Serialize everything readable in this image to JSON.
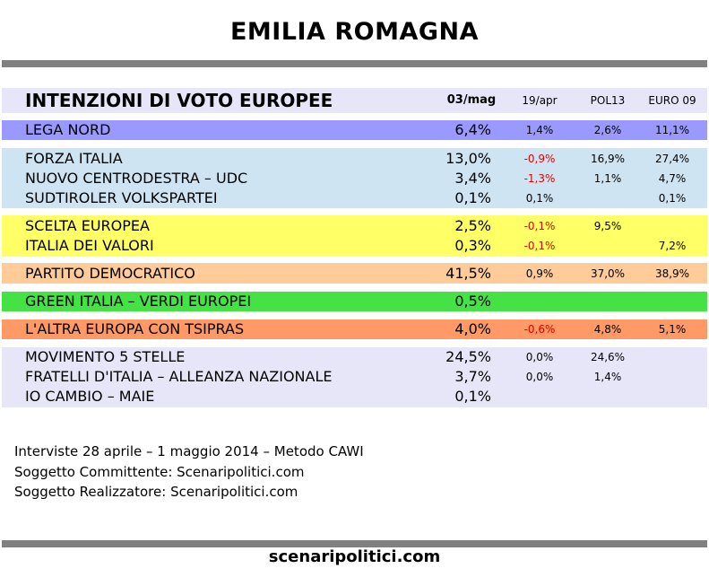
{
  "title": "EMILIA ROMAGNA",
  "header": {
    "label": "INTENZIONI DI VOTO EUROPEE",
    "col1": "03/mag",
    "col2": "19/apr",
    "col3": "POL13",
    "col4": "EURO 09"
  },
  "rows": [
    {
      "name": "LEGA NORD",
      "v": "6,4%",
      "d": "1,4%",
      "p": "2,6%",
      "e": "11,1%"
    },
    {
      "name": "FORZA ITALIA",
      "v": "13,0%",
      "d": "-0,9%",
      "p": "16,9%",
      "e": "27,4%"
    },
    {
      "name": "NUOVO CENTRODESTRA – UDC",
      "v": "3,4%",
      "d": "-1,3%",
      "p": "1,1%",
      "e": "4,7%"
    },
    {
      "name": "SUDTIROLER VOLKSPARTEI",
      "v": "0,1%",
      "d": "0,1%",
      "p": "",
      "e": "0,1%"
    },
    {
      "name": "SCELTA EUROPEA",
      "v": "2,5%",
      "d": "-0,1%",
      "p": "9,5%",
      "e": ""
    },
    {
      "name": "ITALIA DEI VALORI",
      "v": "0,3%",
      "d": "-0,1%",
      "p": "",
      "e": "7,2%"
    },
    {
      "name": "PARTITO DEMOCRATICO",
      "v": "41,5%",
      "d": "0,9%",
      "p": "37,0%",
      "e": "38,9%"
    },
    {
      "name": "GREEN ITALIA – VERDI EUROPEI",
      "v": "0,5%",
      "d": "",
      "p": "",
      "e": ""
    },
    {
      "name": "L'ALTRA EUROPA CON TSIPRAS",
      "v": "4,0%",
      "d": "-0,6%",
      "p": "4,8%",
      "e": "5,1%"
    },
    {
      "name": "MOVIMENTO 5 STELLE",
      "v": "24,5%",
      "d": "0,0%",
      "p": "24,6%",
      "e": ""
    },
    {
      "name": "FRATELLI D'ITALIA – ALLEANZA NAZIONALE",
      "v": "3,7%",
      "d": "0,0%",
      "p": "1,4%",
      "e": ""
    },
    {
      "name": "IO CAMBIO – MAIE",
      "v": "0,1%",
      "d": "",
      "p": "",
      "e": ""
    }
  ],
  "footer": {
    "line1": "Interviste 28 aprile – 1 maggio 2014 – Metodo CAWI",
    "line2": "Soggetto Committente: Scenaripolitici.com",
    "line3": "Soggetto Realizzatore: Scenaripolitici.com"
  },
  "site": "scenaripolitici.com",
  "colors": {
    "header": "#e6e6f8",
    "lega": "#9999ff",
    "centrodestra": "#cfe4f2",
    "centro": "#ffff66",
    "pd": "#ffcc99",
    "green": "#44e244",
    "tsipras": "#ff9966",
    "others": "#e6e6f8",
    "negative": "#e00000"
  }
}
